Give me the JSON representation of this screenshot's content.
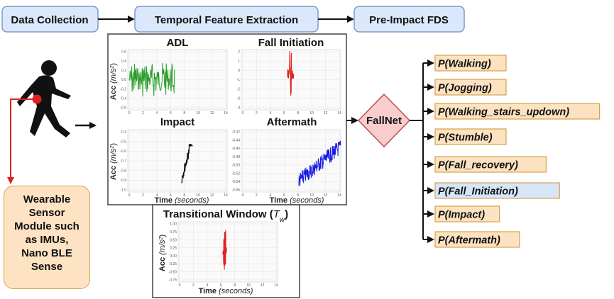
{
  "pipeline": {
    "data_collection": "Data Collection",
    "temporal_feature_extraction": "Temporal Feature Extraction",
    "pre_impact_fds": "Pre-Impact FDS"
  },
  "sensor": {
    "line1": "Wearable",
    "line2": "Sensor",
    "line3": "Module such",
    "line4": "as IMUs,",
    "line5": "Nano BLE",
    "line6": "Sense"
  },
  "plots": {
    "adl": {
      "title": "ADL",
      "yticks": [
        "0.6",
        "0.4",
        "0.2",
        "0.0",
        "-0.2",
        "-0.4",
        "-0.6"
      ],
      "xticks": [
        "0",
        "2",
        "4",
        "6",
        "8",
        "10",
        "12",
        "14"
      ]
    },
    "fall_initiation": {
      "title": "Fall Initiation",
      "yticks": [
        "2",
        "1",
        "0",
        "-1",
        "-2",
        "-3",
        "-4"
      ],
      "xticks": [
        "0",
        "2",
        "4",
        "6",
        "8",
        "10",
        "12",
        "14"
      ]
    },
    "impact": {
      "title": "Impact",
      "yticks": [
        "-0.4",
        "-0.5",
        "-0.6",
        "-0.7",
        "-0.8",
        "-0.9",
        "-1.0"
      ],
      "xticks": [
        "0",
        "2",
        "4",
        "6",
        "8",
        "10",
        "12",
        "14"
      ]
    },
    "aftermath": {
      "title": "Aftermath",
      "yticks": [
        "-0.42",
        "-0.44",
        "-0.46",
        "-0.48",
        "-0.50",
        "-0.52",
        "-0.54",
        "-0.56"
      ],
      "xticks": [
        "0",
        "2",
        "4",
        "6",
        "8",
        "10",
        "12",
        "14"
      ]
    },
    "transitional": {
      "title": "Transitional Window (",
      "title_sym": "T",
      "title_sub": "w",
      "title_end": ")",
      "yticks": [
        "1.00",
        "0.75",
        "0.50",
        "0.25",
        "0.00",
        "-0.25",
        "-0.50",
        "-0.75"
      ],
      "xticks": [
        "0",
        "2",
        "4",
        "6",
        "8",
        "10",
        "12",
        "14"
      ]
    },
    "ylabel_prefix": "Acc ",
    "ylabel_unit": "(m/s",
    "ylabel_exp": "2",
    "ylabel_end": ")",
    "xlabel_prefix": "Time ",
    "xlabel_unit": "(seconds)"
  },
  "fallnet": {
    "label": "FallNet"
  },
  "outputs": [
    {
      "label": "P(Walking)",
      "color": "#fce2c0"
    },
    {
      "label": "P(Jogging)",
      "color": "#fce2c0"
    },
    {
      "label": "P(Walking_stairs_updown)",
      "color": "#fce2c0"
    },
    {
      "label": "P(Stumble)",
      "color": "#fce2c0"
    },
    {
      "label": "P(Fall_recovery)",
      "color": "#fce2c0"
    },
    {
      "label": "P(Fall_Initiation)",
      "color": "#d6e6f8"
    },
    {
      "label": "P(Impact)",
      "color": "#fce2c0"
    },
    {
      "label": "P(Aftermath)",
      "color": "#fce2c0"
    }
  ],
  "colors": {
    "pipeline_fill": "#dbe8fb",
    "pipeline_stroke": "#7b9cc8",
    "sensor_fill": "#fde3c3",
    "sensor_stroke": "#d8a24a",
    "fallnet_fill": "#f8cecc",
    "fallnet_stroke": "#c0504d",
    "adl_signal": "#2a9d2a",
    "fall_init_signal": "#e02020",
    "impact_signal": "#111111",
    "aftermath_signal": "#1a1ae0",
    "transitional_signal": "#e02020",
    "sensor_wire": "#e02020"
  }
}
